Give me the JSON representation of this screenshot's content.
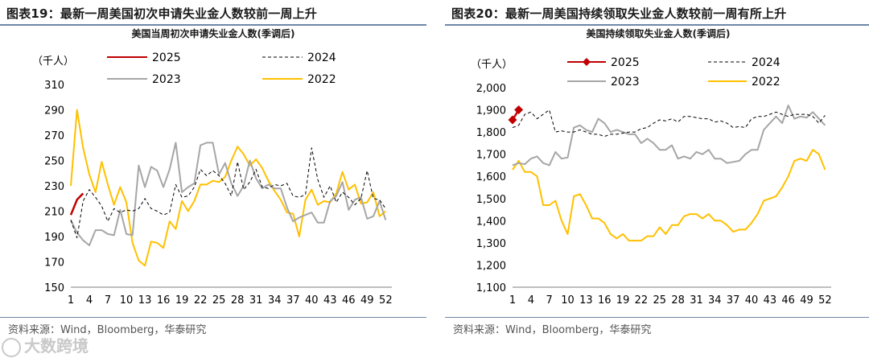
{
  "watermark": "大数跨境",
  "chart_data": [
    {
      "type": "line",
      "figure_label": "图表19：",
      "figure_title": "最新一周美国初次申请失业金人数较前一周上升",
      "title": "美国当周初次申请失业金人数(季调后)",
      "unit_label": "（千人）",
      "source": "资料来源：Wind，Bloomberg，华泰研究",
      "ylim": [
        150,
        310
      ],
      "yticks": [
        "150",
        "170",
        "190",
        "210",
        "230",
        "250",
        "270",
        "290",
        "310"
      ],
      "xlim": [
        1,
        53
      ],
      "xticks": [
        "1",
        "4",
        "7",
        "10",
        "13",
        "16",
        "19",
        "22",
        "25",
        "28",
        "31",
        "34",
        "37",
        "40",
        "43",
        "46",
        "49",
        "52"
      ],
      "legend": "top, 2 columns",
      "series": [
        {
          "name": "2025",
          "color": "#c00000",
          "style": "solid",
          "marker": false,
          "x": [
            1,
            2,
            3
          ],
          "values": [
            207,
            219,
            224
          ]
        },
        {
          "name": "2024",
          "color": "#000000",
          "style": "dashed",
          "marker": false,
          "x": [
            1,
            2,
            3,
            4,
            5,
            6,
            7,
            8,
            9,
            10,
            11,
            12,
            13,
            14,
            15,
            16,
            17,
            18,
            19,
            20,
            21,
            22,
            23,
            24,
            25,
            26,
            27,
            28,
            29,
            30,
            31,
            32,
            33,
            34,
            35,
            36,
            37,
            38,
            39,
            40,
            41,
            42,
            43,
            44,
            45,
            46,
            47,
            48,
            49,
            50,
            51,
            52
          ],
          "values": [
            203,
            189,
            218,
            227,
            221,
            214,
            202,
            212,
            209,
            211,
            210,
            212,
            220,
            212,
            210,
            207,
            209,
            231,
            221,
            222,
            229,
            243,
            238,
            242,
            238,
            232,
            222,
            249,
            227,
            233,
            243,
            229,
            228,
            231,
            230,
            232,
            222,
            221,
            223,
            260,
            235,
            221,
            230,
            217,
            225,
            221,
            215,
            220,
            242,
            220,
            219,
            212
          ]
        },
        {
          "name": "2023",
          "color": "#a6a6a6",
          "style": "solid",
          "marker": false,
          "x": [
            1,
            2,
            3,
            4,
            5,
            6,
            7,
            8,
            9,
            10,
            11,
            12,
            13,
            14,
            15,
            16,
            17,
            18,
            19,
            20,
            21,
            22,
            23,
            24,
            25,
            26,
            27,
            28,
            29,
            30,
            31,
            32,
            33,
            34,
            35,
            36,
            37,
            38,
            39,
            40,
            41,
            42,
            43,
            44,
            45,
            46,
            47,
            48,
            49,
            50,
            51,
            52
          ],
          "values": [
            203,
            193,
            187,
            183,
            195,
            195,
            192,
            191,
            211,
            192,
            191,
            246,
            229,
            245,
            242,
            229,
            243,
            264,
            225,
            229,
            232,
            262,
            264,
            264,
            239,
            248,
            232,
            222,
            230,
            250,
            236,
            228,
            231,
            228,
            228,
            213,
            202,
            205,
            207,
            209,
            201,
            201,
            218,
            222,
            233,
            211,
            219,
            221,
            204,
            206,
            218,
            203
          ]
        },
        {
          "name": "2022",
          "color": "#ffc000",
          "style": "solid",
          "marker": false,
          "x": [
            1,
            2,
            3,
            4,
            5,
            6,
            7,
            8,
            9,
            10,
            11,
            12,
            13,
            14,
            15,
            16,
            17,
            18,
            19,
            20,
            21,
            22,
            23,
            24,
            25,
            26,
            27,
            28,
            29,
            30,
            31,
            32,
            33,
            34,
            35,
            36,
            37,
            38,
            39,
            40,
            41,
            42,
            43,
            44,
            45,
            46,
            47,
            48,
            49,
            50,
            51,
            52
          ],
          "values": [
            230,
            290,
            260,
            239,
            225,
            249,
            231,
            215,
            229,
            217,
            185,
            171,
            167,
            186,
            185,
            181,
            202,
            196,
            218,
            210,
            218,
            231,
            231,
            234,
            233,
            237,
            250,
            261,
            255,
            246,
            251,
            244,
            234,
            226,
            219,
            209,
            208,
            190,
            219,
            227,
            215,
            218,
            217,
            224,
            241,
            227,
            231,
            216,
            217,
            225,
            206,
            210
          ]
        }
      ]
    },
    {
      "type": "line",
      "figure_label": "图表20：",
      "figure_title": "最新一周美国持续领取失业金人数较前一周有所上升",
      "title": "美国持续领取失业金人数(季调后)",
      "unit_label": "（千人）",
      "source": "资料来源：Wind，Bloomberg，华泰研究",
      "ylim": [
        1100,
        2000
      ],
      "yticks": [
        "1,100",
        "1,200",
        "1,300",
        "1,400",
        "1,500",
        "1,600",
        "1,700",
        "1,800",
        "1,900",
        "2,000"
      ],
      "xlim": [
        1,
        53
      ],
      "xticks": [
        "1",
        "4",
        "7",
        "10",
        "13",
        "16",
        "19",
        "22",
        "25",
        "28",
        "31",
        "34",
        "37",
        "40",
        "43",
        "46",
        "49",
        "52"
      ],
      "legend": "top, 2 columns",
      "series": [
        {
          "name": "2025",
          "color": "#c00000",
          "style": "solid",
          "marker": true,
          "x": [
            1,
            2
          ],
          "values": [
            1855,
            1900
          ]
        },
        {
          "name": "2024",
          "color": "#000000",
          "style": "dashed",
          "marker": false,
          "x": [
            1,
            2,
            3,
            4,
            5,
            6,
            7,
            8,
            9,
            10,
            11,
            12,
            13,
            14,
            15,
            16,
            17,
            18,
            19,
            20,
            21,
            22,
            23,
            24,
            25,
            26,
            27,
            28,
            29,
            30,
            31,
            32,
            33,
            34,
            35,
            36,
            37,
            38,
            39,
            40,
            41,
            42,
            43,
            44,
            45,
            46,
            47,
            48,
            49,
            50,
            51,
            52
          ],
          "values": [
            1820,
            1830,
            1880,
            1890,
            1860,
            1880,
            1900,
            1800,
            1805,
            1800,
            1800,
            1810,
            1800,
            1790,
            1790,
            1780,
            1790,
            1790,
            1795,
            1800,
            1800,
            1815,
            1820,
            1840,
            1855,
            1850,
            1860,
            1845,
            1870,
            1870,
            1865,
            1860,
            1860,
            1845,
            1850,
            1840,
            1820,
            1825,
            1820,
            1860,
            1870,
            1870,
            1880,
            1890,
            1880,
            1870,
            1880,
            1880,
            1880,
            1870,
            1840,
            1875
          ]
        },
        {
          "name": "2023",
          "color": "#a6a6a6",
          "style": "solid",
          "marker": false,
          "x": [
            1,
            2,
            3,
            4,
            5,
            6,
            7,
            8,
            9,
            10,
            11,
            12,
            13,
            14,
            15,
            16,
            17,
            18,
            19,
            20,
            21,
            22,
            23,
            24,
            25,
            26,
            27,
            28,
            29,
            30,
            31,
            32,
            33,
            34,
            35,
            36,
            37,
            38,
            39,
            40,
            41,
            42,
            43,
            44,
            45,
            46,
            47,
            48,
            49,
            50,
            51,
            52
          ],
          "values": [
            1650,
            1660,
            1655,
            1680,
            1690,
            1660,
            1650,
            1710,
            1680,
            1685,
            1820,
            1830,
            1810,
            1800,
            1860,
            1840,
            1800,
            1810,
            1800,
            1790,
            1790,
            1750,
            1770,
            1750,
            1720,
            1720,
            1740,
            1680,
            1690,
            1680,
            1710,
            1700,
            1720,
            1680,
            1680,
            1660,
            1665,
            1670,
            1700,
            1720,
            1720,
            1810,
            1840,
            1870,
            1840,
            1920,
            1860,
            1870,
            1865,
            1890,
            1860,
            1830
          ]
        },
        {
          "name": "2022",
          "color": "#ffc000",
          "style": "solid",
          "marker": false,
          "x": [
            1,
            2,
            3,
            4,
            5,
            6,
            7,
            8,
            9,
            10,
            11,
            12,
            13,
            14,
            15,
            16,
            17,
            18,
            19,
            20,
            21,
            22,
            23,
            24,
            25,
            26,
            27,
            28,
            29,
            30,
            31,
            32,
            33,
            34,
            35,
            36,
            37,
            38,
            39,
            40,
            41,
            42,
            43,
            44,
            45,
            46,
            47,
            48,
            49,
            50,
            51,
            52
          ],
          "values": [
            1630,
            1670,
            1620,
            1620,
            1600,
            1470,
            1470,
            1490,
            1400,
            1340,
            1510,
            1520,
            1470,
            1410,
            1410,
            1390,
            1340,
            1320,
            1340,
            1310,
            1310,
            1310,
            1330,
            1330,
            1370,
            1340,
            1380,
            1380,
            1420,
            1430,
            1430,
            1410,
            1430,
            1400,
            1400,
            1380,
            1350,
            1360,
            1360,
            1390,
            1430,
            1490,
            1500,
            1510,
            1550,
            1600,
            1670,
            1680,
            1670,
            1720,
            1700,
            1630
          ]
        }
      ]
    }
  ]
}
